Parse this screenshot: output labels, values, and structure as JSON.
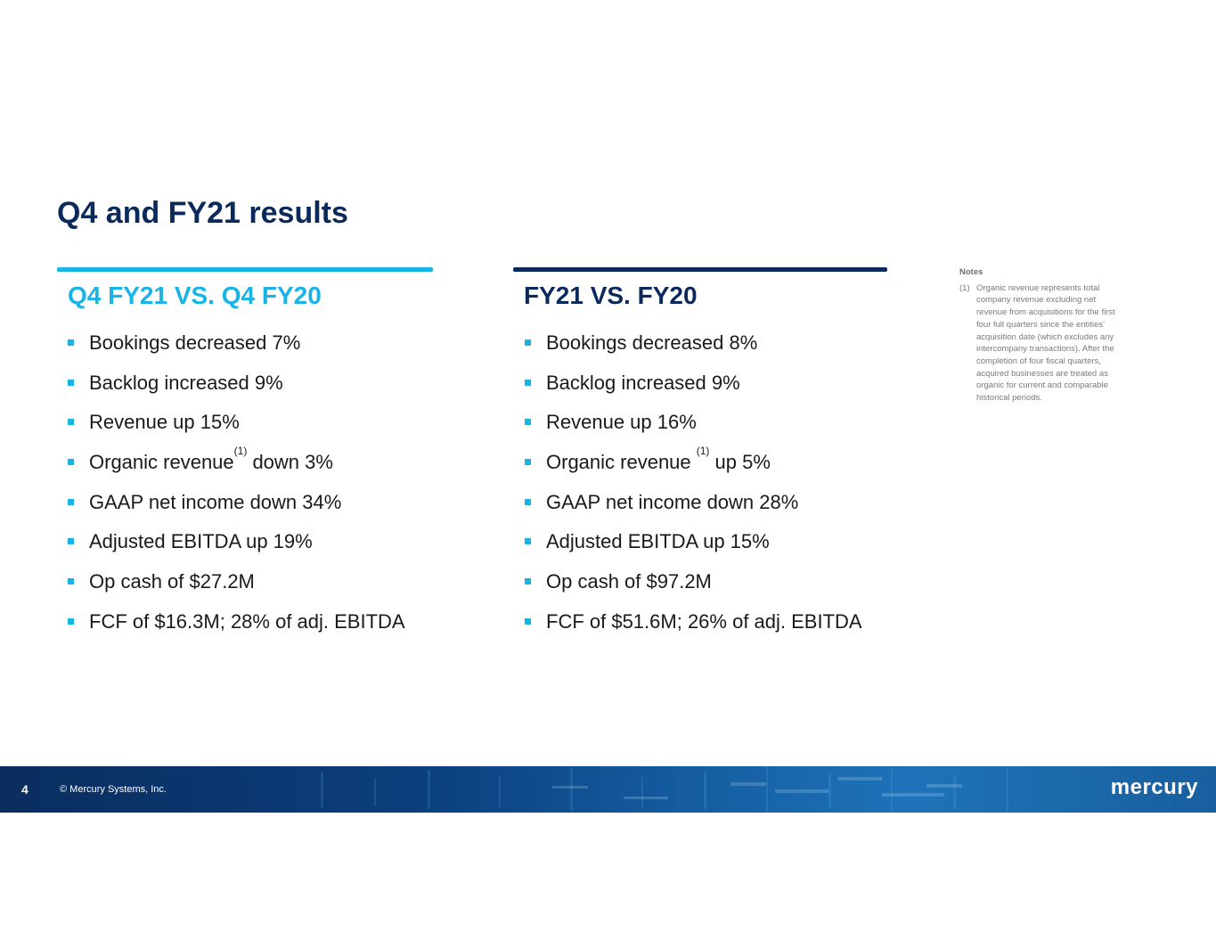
{
  "slide": {
    "title": "Q4 and FY21 results"
  },
  "left_column": {
    "heading": "Q4 FY21 VS. Q4 FY20",
    "bullets": [
      {
        "text": "Bookings decreased 7%"
      },
      {
        "text": "Backlog increased 9%"
      },
      {
        "text": "Revenue up 15%"
      },
      {
        "text_before": "Organic revenue",
        "sup": "(1)",
        "text_after": " down 3%"
      },
      {
        "text": "GAAP net income down 34%"
      },
      {
        "text": "Adjusted EBITDA up 19%"
      },
      {
        "text": "Op cash of $27.2M"
      },
      {
        "text": "FCF of $16.3M; 28% of adj. EBITDA"
      }
    ]
  },
  "right_column": {
    "heading": "FY21 VS. FY20",
    "bullets": [
      {
        "text": "Bookings decreased 8%"
      },
      {
        "text": "Backlog increased 9%"
      },
      {
        "text": "Revenue up 16%"
      },
      {
        "text_before": "Organic revenue ",
        "sup": "(1)",
        "text_after": " up 5%"
      },
      {
        "text": "GAAP net income down 28%"
      },
      {
        "text": "Adjusted EBITDA up 15%"
      },
      {
        "text": "Op cash of $97.2M"
      },
      {
        "text": "FCF of $51.6M; 26% of adj. EBITDA"
      }
    ]
  },
  "notes": {
    "heading": "Notes",
    "items": [
      {
        "num": "(1)",
        "text": "Organic revenue represents total company revenue excluding net revenue from acquisitions for the first four full quarters since the entities’ acquisition date (which excludes any intercompany transactions). After the completion of four fiscal quarters, acquired businesses are treated as organic for current and comparable historical periods."
      }
    ]
  },
  "footer": {
    "page_number": "4",
    "copyright": "© Mercury Systems, Inc.",
    "logo_text": "mercury"
  },
  "colors": {
    "title": "#0b2a5c",
    "accent_cyan": "#19b3e6",
    "navy": "#0b2a5c",
    "footer_band": "#0b3f7e"
  }
}
